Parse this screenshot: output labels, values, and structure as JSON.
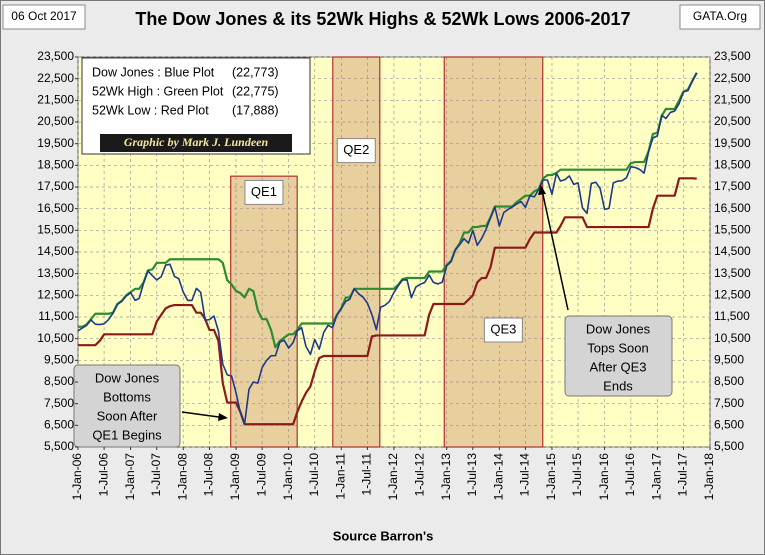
{
  "chart_data": {
    "type": "line",
    "title": "The Dow Jones & its 52Wk Highs & 52Wk Lows 2006-2017",
    "date_label": "06 Oct 2017",
    "source_site": "GATA.Org",
    "credit": "Graphic by Mark J. Lundeen",
    "x_label": "Source Barron's",
    "x": [
      "2006-01-01",
      "2006-02-01",
      "2006-03-01",
      "2006-04-01",
      "2006-05-01",
      "2006-06-01",
      "2006-07-01",
      "2006-08-01",
      "2006-09-01",
      "2006-10-01",
      "2006-11-01",
      "2006-12-01",
      "2007-01-01",
      "2007-02-01",
      "2007-03-01",
      "2007-04-01",
      "2007-05-01",
      "2007-06-01",
      "2007-07-01",
      "2007-08-01",
      "2007-09-01",
      "2007-10-01",
      "2007-11-01",
      "2007-12-01",
      "2008-01-01",
      "2008-02-01",
      "2008-03-01",
      "2008-04-01",
      "2008-05-01",
      "2008-06-01",
      "2008-07-01",
      "2008-08-01",
      "2008-09-01",
      "2008-10-01",
      "2008-11-01",
      "2008-12-01",
      "2009-01-01",
      "2009-02-01",
      "2009-03-01",
      "2009-04-01",
      "2009-05-01",
      "2009-06-01",
      "2009-07-01",
      "2009-08-01",
      "2009-09-01",
      "2009-10-01",
      "2009-11-01",
      "2009-12-01",
      "2010-01-01",
      "2010-02-01",
      "2010-03-01",
      "2010-04-01",
      "2010-05-01",
      "2010-06-01",
      "2010-07-01",
      "2010-08-01",
      "2010-09-01",
      "2010-10-01",
      "2010-11-01",
      "2010-12-01",
      "2011-01-01",
      "2011-02-01",
      "2011-03-01",
      "2011-04-01",
      "2011-05-01",
      "2011-06-01",
      "2011-07-01",
      "2011-08-01",
      "2011-09-01",
      "2011-10-01",
      "2011-11-01",
      "2011-12-01",
      "2012-01-01",
      "2012-02-01",
      "2012-03-01",
      "2012-04-01",
      "2012-05-01",
      "2012-06-01",
      "2012-07-01",
      "2012-08-01",
      "2012-09-01",
      "2012-10-01",
      "2012-11-01",
      "2012-12-01",
      "2013-01-01",
      "2013-02-01",
      "2013-03-01",
      "2013-04-01",
      "2013-05-01",
      "2013-06-01",
      "2013-07-01",
      "2013-08-01",
      "2013-09-01",
      "2013-10-01",
      "2013-11-01",
      "2013-12-01",
      "2014-01-01",
      "2014-02-01",
      "2014-03-01",
      "2014-04-01",
      "2014-05-01",
      "2014-06-01",
      "2014-07-01",
      "2014-08-01",
      "2014-09-01",
      "2014-10-01",
      "2014-11-01",
      "2014-12-01",
      "2015-01-01",
      "2015-02-01",
      "2015-03-01",
      "2015-04-01",
      "2015-05-01",
      "2015-06-01",
      "2015-07-01",
      "2015-08-01",
      "2015-09-01",
      "2015-10-01",
      "2015-11-01",
      "2015-12-01",
      "2016-01-01",
      "2016-02-01",
      "2016-03-01",
      "2016-04-01",
      "2016-05-01",
      "2016-06-01",
      "2016-07-01",
      "2016-08-01",
      "2016-09-01",
      "2016-10-01",
      "2016-11-01",
      "2016-12-01",
      "2017-01-01",
      "2017-02-01",
      "2017-03-01",
      "2017-04-01",
      "2017-05-01",
      "2017-06-01",
      "2017-07-01",
      "2017-08-01",
      "2017-09-01",
      "2017-10-01"
    ],
    "series": [
      {
        "name": "Dow Jones : Blue Plot",
        "legend_note": "(22,773)",
        "color": "#1c3a8a",
        "values": [
          10865,
          10993,
          11109,
          11367,
          11168,
          11150,
          11186,
          11381,
          11679,
          12081,
          12222,
          12463,
          12622,
          12269,
          12354,
          13063,
          13628,
          13409,
          13212,
          13358,
          13896,
          13930,
          13372,
          13265,
          12650,
          12266,
          12263,
          12820,
          12638,
          11350,
          11378,
          11544,
          10851,
          9325,
          8829,
          8776,
          8001,
          7063,
          6547,
          8168,
          8500,
          8447,
          9172,
          9496,
          9712,
          9713,
          10345,
          10428,
          10067,
          10325,
          10857,
          11009,
          10137,
          9774,
          10466,
          10015,
          10788,
          11118,
          11006,
          11578,
          11892,
          12226,
          12320,
          12811,
          12570,
          12414,
          12143,
          11614,
          10913,
          11955,
          12046,
          12218,
          12633,
          12952,
          13212,
          13214,
          12393,
          12880,
          13009,
          13091,
          13437,
          13096,
          13026,
          13104,
          13861,
          14054,
          14579,
          14840,
          15116,
          14910,
          15500,
          14810,
          15130,
          15546,
          16086,
          16577,
          15699,
          16322,
          16458,
          16581,
          16717,
          16827,
          16563,
          17098,
          17043,
          17391,
          17828,
          17823,
          17165,
          18133,
          17776,
          17841,
          18011,
          17620,
          17690,
          16528,
          16285,
          17664,
          17720,
          17425,
          16466,
          16517,
          17685,
          17774,
          17787,
          17930,
          18432,
          18401,
          18308,
          18142,
          19124,
          19763,
          19864,
          20812,
          20663,
          20941,
          21009,
          21350,
          21891,
          21948,
          22405,
          22773
        ]
      },
      {
        "name": "52Wk High : Green Plot",
        "legend_note": "(22,775)",
        "color": "#2e8b2e",
        "values": [
          11050,
          11050,
          11150,
          11400,
          11650,
          11650,
          11650,
          11650,
          11700,
          12100,
          12250,
          12500,
          12650,
          12800,
          12800,
          13100,
          13650,
          13700,
          14000,
          14000,
          14000,
          14165,
          14165,
          14165,
          14165,
          14165,
          14165,
          14165,
          14165,
          14165,
          14165,
          14165,
          14165,
          14000,
          13200,
          13000,
          12700,
          12600,
          12400,
          12800,
          12700,
          11800,
          11400,
          11400,
          10900,
          10100,
          10400,
          10550,
          10700,
          10700,
          10900,
          11200,
          11200,
          11200,
          11200,
          11200,
          11200,
          11200,
          11200,
          11600,
          11900,
          12400,
          12400,
          12800,
          12800,
          12800,
          12800,
          12800,
          12800,
          12800,
          12800,
          12800,
          12800,
          13000,
          13250,
          13300,
          13300,
          13300,
          13300,
          13300,
          13600,
          13600,
          13600,
          13600,
          13900,
          14100,
          14600,
          14900,
          15400,
          15400,
          15650,
          15650,
          15700,
          15700,
          16100,
          16600,
          16600,
          16600,
          16600,
          16600,
          16800,
          16950,
          17100,
          17100,
          17300,
          17400,
          17900,
          18050,
          18050,
          18150,
          18300,
          18300,
          18300,
          18300,
          18300,
          18300,
          18300,
          18300,
          18300,
          18300,
          18300,
          18300,
          18300,
          18300,
          18300,
          18300,
          18600,
          18650,
          18650,
          18650,
          19150,
          19950,
          20000,
          20800,
          21100,
          21100,
          21100,
          21500,
          21900,
          22000,
          22400,
          22775
        ]
      },
      {
        "name": "52Wk Low : Red Plot",
        "legend_note": "(17,888)",
        "color": "#8b1a1a",
        "values": [
          10200,
          10200,
          10200,
          10200,
          10200,
          10400,
          10700,
          10700,
          10700,
          10700,
          10700,
          10700,
          10700,
          10700,
          10700,
          10700,
          10700,
          10700,
          11300,
          11600,
          11900,
          12000,
          12050,
          12050,
          12050,
          12050,
          12050,
          11700,
          11700,
          11400,
          10900,
          10900,
          10400,
          8450,
          7550,
          7550,
          7550,
          7100,
          6550,
          6550,
          6550,
          6550,
          6550,
          6550,
          6550,
          6550,
          6550,
          6550,
          6550,
          6550,
          7100,
          7600,
          8000,
          8300,
          9000,
          9600,
          9700,
          9700,
          9700,
          9700,
          9700,
          9700,
          9700,
          9700,
          9700,
          9700,
          9700,
          10600,
          10650,
          10650,
          10650,
          10650,
          10650,
          10650,
          10650,
          10650,
          10650,
          10650,
          10650,
          10650,
          11600,
          12100,
          12100,
          12100,
          12100,
          12100,
          12100,
          12100,
          12100,
          12300,
          12500,
          13100,
          13300,
          13300,
          13800,
          14700,
          14700,
          14700,
          14700,
          14700,
          14700,
          14700,
          14700,
          15100,
          15400,
          15400,
          15400,
          15400,
          15400,
          15400,
          15700,
          16100,
          16100,
          16100,
          16100,
          16100,
          15650,
          15650,
          15650,
          15650,
          15650,
          15650,
          15650,
          15650,
          15650,
          15650,
          15650,
          15650,
          15650,
          15650,
          15650,
          16500,
          17100,
          17100,
          17100,
          17100,
          17100,
          17900,
          17900,
          17900,
          17900,
          17888
        ]
      }
    ],
    "xlim": [
      "2006-01-01",
      "2018-01-01"
    ],
    "xticks": [
      {
        "value": "2006-01-01",
        "label": "1-Jan-06"
      },
      {
        "value": "2006-07-01",
        "label": "1-Jul-06"
      },
      {
        "value": "2007-01-01",
        "label": "1-Jan-07"
      },
      {
        "value": "2007-07-01",
        "label": "1-Jul-07"
      },
      {
        "value": "2008-01-01",
        "label": "1-Jan-08"
      },
      {
        "value": "2008-07-01",
        "label": "1-Jul-08"
      },
      {
        "value": "2009-01-01",
        "label": "1-Jan-09"
      },
      {
        "value": "2009-07-01",
        "label": "1-Jul-09"
      },
      {
        "value": "2010-01-01",
        "label": "1-Jan-10"
      },
      {
        "value": "2010-07-01",
        "label": "1-Jul-10"
      },
      {
        "value": "2011-01-01",
        "label": "1-Jan-11"
      },
      {
        "value": "2011-07-01",
        "label": "1-Jul-11"
      },
      {
        "value": "2012-01-01",
        "label": "1-Jan-12"
      },
      {
        "value": "2012-07-01",
        "label": "1-Jul-12"
      },
      {
        "value": "2013-01-01",
        "label": "1-Jan-13"
      },
      {
        "value": "2013-07-01",
        "label": "1-Jul-13"
      },
      {
        "value": "2014-01-01",
        "label": "1-Jan-14"
      },
      {
        "value": "2014-07-01",
        "label": "1-Jul-14"
      },
      {
        "value": "2015-01-01",
        "label": "1-Jan-15"
      },
      {
        "value": "2015-07-01",
        "label": "1-Jul-15"
      },
      {
        "value": "2016-01-01",
        "label": "1-Jan-16"
      },
      {
        "value": "2016-07-01",
        "label": "1-Jul-16"
      },
      {
        "value": "2017-01-01",
        "label": "1-Jan-17"
      },
      {
        "value": "2017-07-01",
        "label": "1-Jul-17"
      },
      {
        "value": "2018-01-01",
        "label": "1-Jan-18"
      }
    ],
    "ylim": [
      5500,
      23500
    ],
    "yticks": [
      {
        "value": 5500,
        "label": "5,500"
      },
      {
        "value": 6500,
        "label": "6,500"
      },
      {
        "value": 7500,
        "label": "7,500"
      },
      {
        "value": 8500,
        "label": "8,500"
      },
      {
        "value": 9500,
        "label": "9,500"
      },
      {
        "value": 10500,
        "label": "10,500"
      },
      {
        "value": 11500,
        "label": "11,500"
      },
      {
        "value": 12500,
        "label": "12,500"
      },
      {
        "value": 13500,
        "label": "13,500"
      },
      {
        "value": 14500,
        "label": "14,500"
      },
      {
        "value": 15500,
        "label": "15,500"
      },
      {
        "value": 16500,
        "label": "16,500"
      },
      {
        "value": 17500,
        "label": "17,500"
      },
      {
        "value": 18500,
        "label": "18,500"
      },
      {
        "value": 19500,
        "label": "19,500"
      },
      {
        "value": 20500,
        "label": "20,500"
      },
      {
        "value": 21500,
        "label": "21,500"
      },
      {
        "value": 22500,
        "label": "22,500"
      },
      {
        "value": 23500,
        "label": "23,500"
      }
    ],
    "grid": true,
    "regions": [
      {
        "label": "QE1",
        "x": [
          "2008-11-25",
          "2010-03-01"
        ],
        "y": [
          5500,
          18000
        ]
      },
      {
        "label": "QE2",
        "x": [
          "2010-11-03",
          "2011-09-25"
        ],
        "y": [
          5500,
          23500
        ]
      },
      {
        "label": "QE3",
        "x": [
          "2012-12-15",
          "2014-10-29"
        ],
        "y": [
          5500,
          23500
        ]
      }
    ],
    "annotations": [
      {
        "lines": [
          "Dow Jones",
          "Bottoms",
          "Soon After",
          "QE1 Begins"
        ]
      },
      {
        "lines": [
          "Dow Jones",
          "Tops Soon",
          "After QE3",
          "Ends"
        ]
      }
    ]
  }
}
